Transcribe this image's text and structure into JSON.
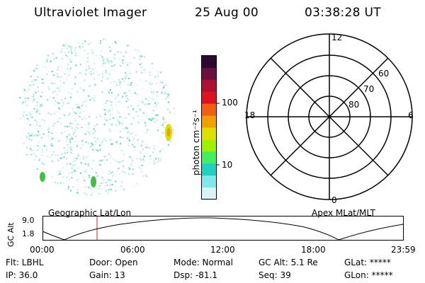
{
  "header": {
    "title": "Ultraviolet Imager",
    "date": "25 Aug 00",
    "time": "03:38:28 UT"
  },
  "colorbar": {
    "unit_label": "photon cm⁻²s⁻¹",
    "ticks": [
      "100",
      "10"
    ],
    "colors": [
      "#2a0a30",
      "#6a1040",
      "#b01030",
      "#e01020",
      "#f06010",
      "#f0a000",
      "#e0e000",
      "#a0f000",
      "#40f060",
      "#20d0c0",
      "#80e8e8",
      "#d8f4f4"
    ]
  },
  "polar_plot": {
    "labels": {
      "top": "12",
      "left": "18",
      "right": "6",
      "bottom": "0"
    },
    "rings": [
      "60",
      "70",
      "80"
    ]
  },
  "image_labels": {
    "left": "Geographic Lat/Lon",
    "right": "Apex MLat/MLT"
  },
  "orbit_plot": {
    "y_axis_label": "GC Alt",
    "y_ticks": [
      "9.0",
      "1.8"
    ],
    "x_ticks": [
      "00:00",
      "06:00",
      "12:00",
      "18:00",
      "23:59"
    ]
  },
  "status": {
    "filter": "Flt: LBHL",
    "door": "Door: Open",
    "mode": "Mode: Normal",
    "gc_alt": "GC Alt: 5.1 Re",
    "glat": "GLat: *****",
    "ip": "IP: 36.0",
    "gain": "Gain: 13",
    "dsp": "Dsp:  -81.1",
    "seq": "Seq: 39",
    "glon": "GLon: *****"
  }
}
